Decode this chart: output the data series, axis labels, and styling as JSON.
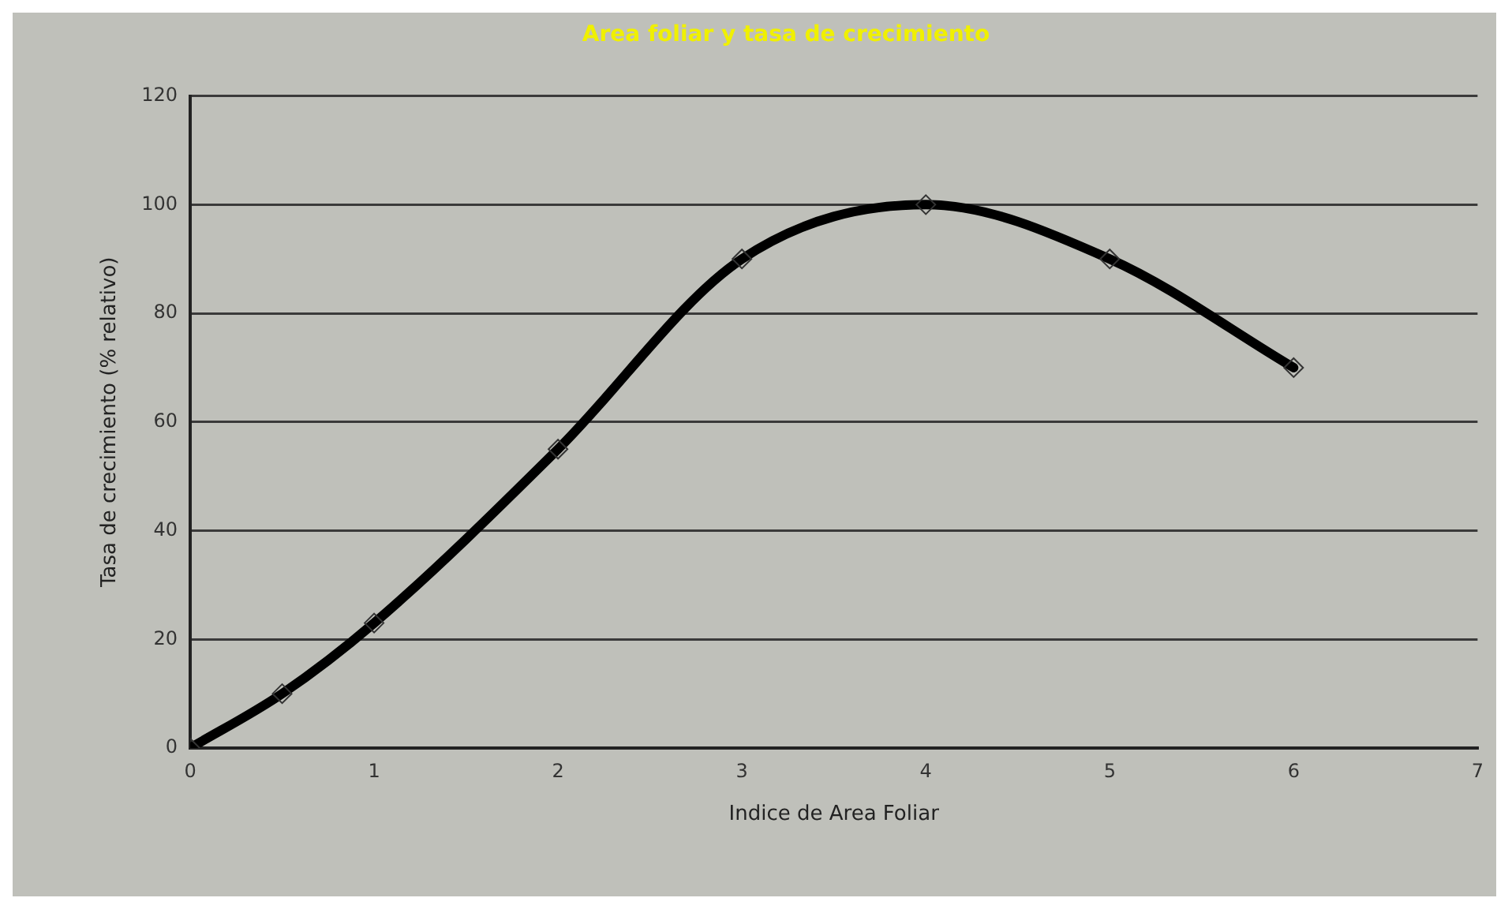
{
  "chart_data": {
    "type": "line",
    "title": "Area foliar y tasa de crecimiento",
    "xlabel": "Indice de Area Foliar",
    "ylabel": "Tasa de crecimiento (% relativo)",
    "x": [
      0,
      0.5,
      1,
      2,
      3,
      4,
      5,
      6
    ],
    "series": [
      {
        "color": "#000000",
        "values": [
          0,
          10,
          23,
          55,
          90,
          100,
          90,
          70
        ]
      }
    ],
    "xlim": [
      0,
      7
    ],
    "xticks": [
      0,
      1,
      2,
      3,
      4,
      5,
      6,
      7
    ],
    "ylim": [
      0,
      120
    ],
    "yticks": [
      0,
      20,
      40,
      60,
      80,
      100,
      120
    ],
    "grid": "y",
    "legend": false,
    "marker": "diamond",
    "line_style": "solid"
  }
}
